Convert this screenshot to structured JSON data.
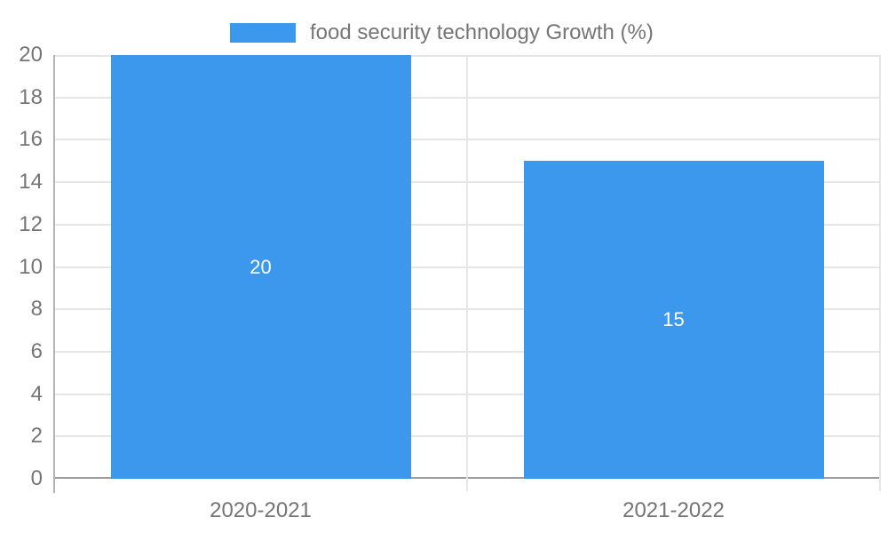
{
  "chart_data": {
    "type": "bar",
    "title": "",
    "legend": {
      "label": "food security technology Growth (%)",
      "position": "top-center"
    },
    "categories": [
      "2020-2021",
      "2021-2022"
    ],
    "series": [
      {
        "name": "food security technology Growth (%)",
        "values": [
          20,
          15
        ]
      }
    ],
    "data_labels": [
      "20",
      "15"
    ],
    "xlabel": "",
    "ylabel": "",
    "ylim": [
      0,
      20
    ],
    "yticks": [
      0,
      2,
      4,
      6,
      8,
      10,
      12,
      14,
      16,
      18,
      20
    ],
    "grid": true
  },
  "colors": {
    "bar": "#3b98ec",
    "data_label": "#ffffff",
    "axis_text": "#757575",
    "gridline": "#e6e6e6",
    "axis_line": "#b3b3b3",
    "baseline": "#9e9e9e",
    "background": "#ffffff"
  }
}
